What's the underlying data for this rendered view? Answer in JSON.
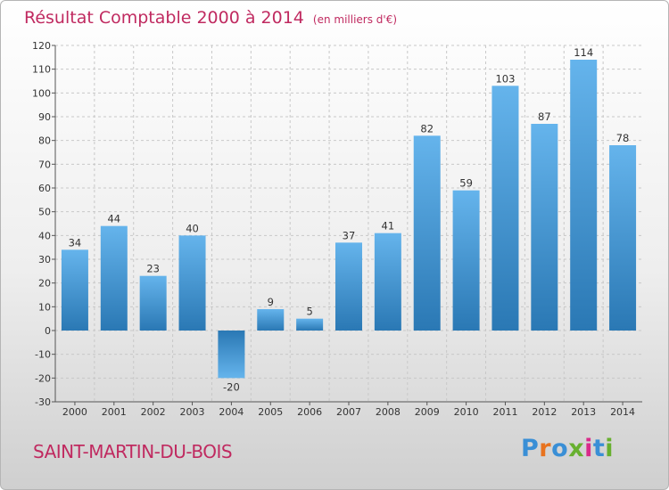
{
  "title": "Résultat Comptable 2000 à 2014",
  "unit": "(en milliers d'€)",
  "commune": "SAINT-MARTIN-DU-BOIS",
  "logo": {
    "text": "Proxiti",
    "letter_colors": [
      "#3a8fd6",
      "#e8731f",
      "#3a8fd6",
      "#67b02f",
      "#d92a8a",
      "#3a8fd6",
      "#67b02f"
    ]
  },
  "colors": {
    "accent": "#c02a60",
    "bar_light": "#65b4ec",
    "bar_dark": "#2a78b4"
  },
  "chart_data": {
    "type": "bar",
    "categories": [
      "2000",
      "2001",
      "2002",
      "2003",
      "2004",
      "2005",
      "2006",
      "2007",
      "2008",
      "2009",
      "2010",
      "2011",
      "2012",
      "2013",
      "2014"
    ],
    "values": [
      34,
      44,
      23,
      40,
      -20,
      9,
      5,
      37,
      41,
      82,
      59,
      103,
      87,
      114,
      78
    ],
    "ylim": [
      -30,
      120
    ],
    "yticks": [
      -30,
      -20,
      -10,
      0,
      10,
      20,
      30,
      40,
      50,
      60,
      70,
      80,
      90,
      100,
      110,
      120
    ],
    "grid": true,
    "xlabel": "",
    "ylabel": ""
  }
}
